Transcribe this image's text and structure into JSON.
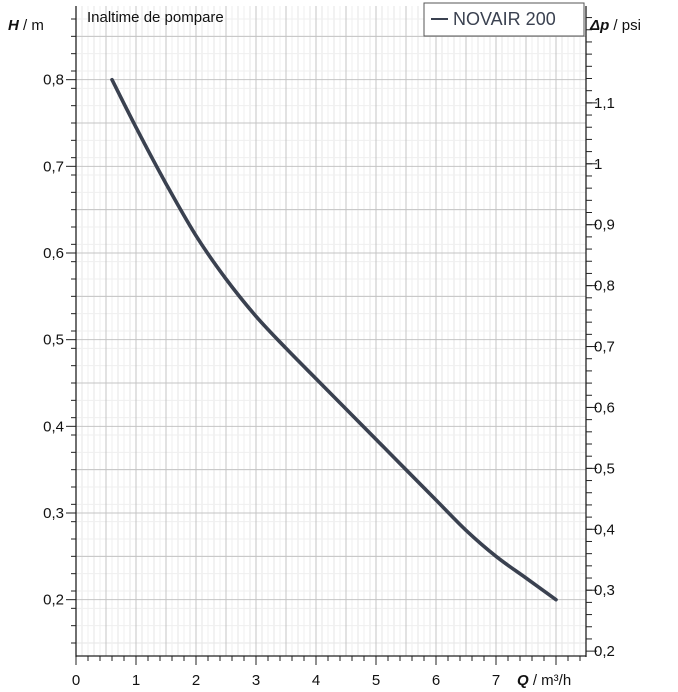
{
  "chart_data": {
    "type": "line",
    "title": "Inaltime de pompare",
    "y_label": {
      "symbol": "H",
      "unit": " / m"
    },
    "y2_label": {
      "symbol": "Δp",
      "unit": " / psi"
    },
    "x_label": {
      "symbol": "Q",
      "unit": " / m³/h"
    },
    "xlim": [
      0,
      8.5
    ],
    "ylim": [
      0.135,
      0.885
    ],
    "y2lim": [
      0.192,
      1.259
    ],
    "x_ticks": [
      "0",
      "1",
      "2",
      "3",
      "4",
      "5",
      "6",
      "7"
    ],
    "y_ticks": [
      "0,2",
      "0,3",
      "0,4",
      "0,5",
      "0,6",
      "0,7",
      "0,8"
    ],
    "y2_ticks": [
      "0,2",
      "0,3",
      "0,4",
      "0,5",
      "0,6",
      "0,7",
      "0,8",
      "0,9",
      "1",
      "1,1"
    ],
    "grid": true,
    "legend_position": "top-right",
    "series": [
      {
        "name": "NOVAIR 200",
        "color": "#3a4150",
        "x": [
          0.6,
          1.0,
          1.5,
          2.0,
          2.5,
          3.0,
          3.5,
          4.0,
          4.5,
          5.0,
          5.5,
          6.0,
          6.5,
          7.0,
          7.5,
          8.0
        ],
        "y": [
          0.8,
          0.745,
          0.68,
          0.62,
          0.57,
          0.527,
          0.49,
          0.455,
          0.42,
          0.385,
          0.35,
          0.315,
          0.28,
          0.25,
          0.225,
          0.2
        ]
      }
    ]
  }
}
